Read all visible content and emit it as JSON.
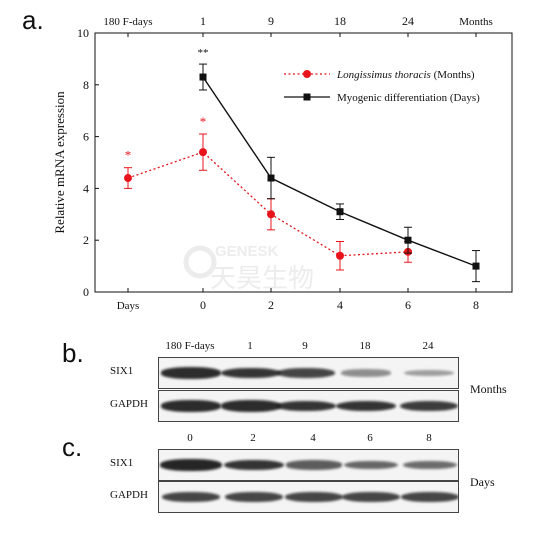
{
  "panels": {
    "a": "a.",
    "b": "b.",
    "c": "c."
  },
  "watermark": {
    "line1": "GENESK",
    "line2": "天昊生物"
  },
  "chart_data": {
    "type": "line",
    "ylabel": "Relative mRNA expression",
    "ylim": [
      0,
      10
    ],
    "yticks": [
      "0",
      "2",
      "4",
      "6",
      "8",
      "10"
    ],
    "bottom_axis": {
      "ticks": [
        "Days",
        "0",
        "2",
        "4",
        "6",
        "8"
      ]
    },
    "top_axis": {
      "ticks": [
        "180 F-days",
        "1",
        "9",
        "18",
        "24",
        "Months"
      ]
    },
    "legend": {
      "position": "top-right",
      "entries": [
        {
          "name": "Longissimus thoracis",
          "suffix": "(Months)",
          "color": "#e8141b",
          "style": "dotted",
          "marker": "circle"
        },
        {
          "name": "Myogenic differentiation",
          "suffix": "(Days)",
          "color": "#111111",
          "style": "solid",
          "marker": "square"
        }
      ]
    },
    "series": [
      {
        "name": "Longissimus thoracis",
        "color": "#e8141b",
        "x_index": [
          0,
          1,
          2,
          3,
          4
        ],
        "values": [
          4.4,
          5.4,
          3.0,
          1.4,
          1.55
        ],
        "errors": [
          0.4,
          0.7,
          0.6,
          0.55,
          0.4
        ],
        "annotations": [
          {
            "index": 0,
            "text": "*"
          },
          {
            "index": 1,
            "text": "*"
          }
        ]
      },
      {
        "name": "Myogenic differentiation",
        "color": "#111111",
        "x_index": [
          1,
          2,
          3,
          4,
          5
        ],
        "values": [
          8.3,
          4.4,
          3.1,
          2.0,
          1.0
        ],
        "errors": [
          0.5,
          0.8,
          0.3,
          0.5,
          0.6
        ],
        "annotations": [
          {
            "index": 0,
            "text": "**"
          }
        ]
      }
    ]
  },
  "blot_b": {
    "headers": [
      "180 F-days",
      "1",
      "9",
      "18",
      "24"
    ],
    "side_label": "Months",
    "rows": [
      {
        "label": "SIX1",
        "intensity": [
          0.9,
          0.85,
          0.75,
          0.3,
          0.2
        ]
      },
      {
        "label": "GAPDH",
        "intensity": [
          0.9,
          0.9,
          0.85,
          0.85,
          0.8
        ]
      }
    ]
  },
  "blot_c": {
    "headers": [
      "0",
      "2",
      "4",
      "6",
      "8"
    ],
    "side_label": "Days",
    "rows": [
      {
        "label": "SIX1",
        "intensity": [
          0.95,
          0.85,
          0.6,
          0.55,
          0.5
        ]
      },
      {
        "label": "GAPDH",
        "intensity": [
          0.75,
          0.75,
          0.75,
          0.75,
          0.75
        ]
      }
    ]
  }
}
